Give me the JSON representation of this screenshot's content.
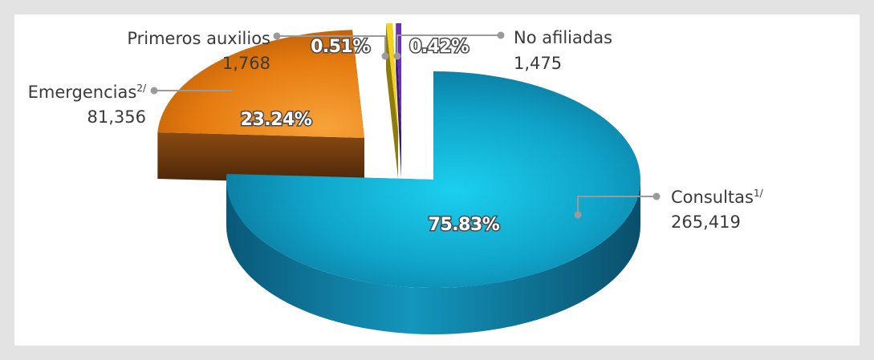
{
  "chart_data": {
    "type": "pie",
    "categories": [
      "Consultas",
      "Emergencias",
      "Primeros auxilios",
      "No afiliadas"
    ],
    "values": [
      265419,
      81356,
      1768,
      1475
    ],
    "percentages": [
      "75.83%",
      "23.24%",
      "0.51%",
      "0.42%"
    ],
    "value_labels": [
      "265,419",
      "81,356",
      "1,768",
      "1,475"
    ],
    "footnotes": [
      "1/",
      "2/",
      "",
      ""
    ],
    "colors": [
      "#0fa6cc",
      "#e57b10",
      "#f2d21d",
      "#6a2fb5"
    ],
    "style": "3d-exploded"
  }
}
